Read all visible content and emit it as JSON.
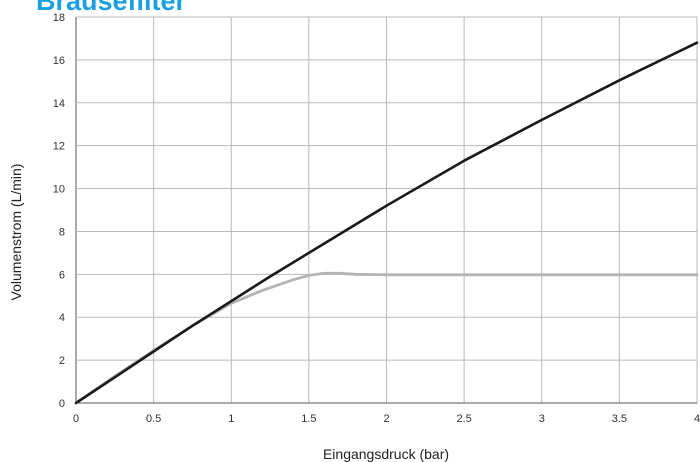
{
  "page": {
    "title": "Brausefilter"
  },
  "chart_data": {
    "type": "line",
    "title": "Brausefilter",
    "xlabel": "Eingangsdruck (bar)",
    "ylabel": "Volumenstrom (L/min)",
    "xlim": [
      0,
      4
    ],
    "ylim": [
      0,
      18
    ],
    "xticks": [
      0,
      0.5,
      1,
      1.5,
      2,
      2.5,
      3,
      3.5,
      4
    ],
    "xtick_labels": [
      "0",
      "0.5",
      "1",
      "1.5",
      "2",
      "2.5",
      "3",
      "3.5",
      "4"
    ],
    "yticks": [
      0,
      2,
      4,
      6,
      8,
      10,
      12,
      14,
      16,
      18
    ],
    "ytick_labels": [
      "0",
      "2",
      "4",
      "6",
      "8",
      "10",
      "12",
      "14",
      "16",
      "18"
    ],
    "grid": true,
    "legend": false,
    "series": [
      {
        "color": "#1a1a1a",
        "x": [
          0,
          0.25,
          0.5,
          0.75,
          1,
          1.25,
          1.5,
          2,
          2.5,
          3,
          3.5,
          4
        ],
        "y": [
          0,
          1.2,
          2.4,
          3.6,
          4.75,
          5.9,
          7.0,
          9.2,
          11.3,
          13.2,
          15.05,
          16.8
        ]
      },
      {
        "color": "#b4b4b4",
        "x": [
          0,
          0.25,
          0.5,
          0.75,
          1,
          1.2,
          1.4,
          1.5,
          1.6,
          1.7,
          1.8,
          2,
          2.5,
          3,
          3.5,
          4
        ],
        "y": [
          0,
          1.25,
          2.45,
          3.6,
          4.65,
          5.25,
          5.75,
          5.95,
          6.05,
          6.05,
          6.0,
          5.98,
          5.98,
          5.98,
          5.98,
          5.98
        ]
      }
    ]
  }
}
